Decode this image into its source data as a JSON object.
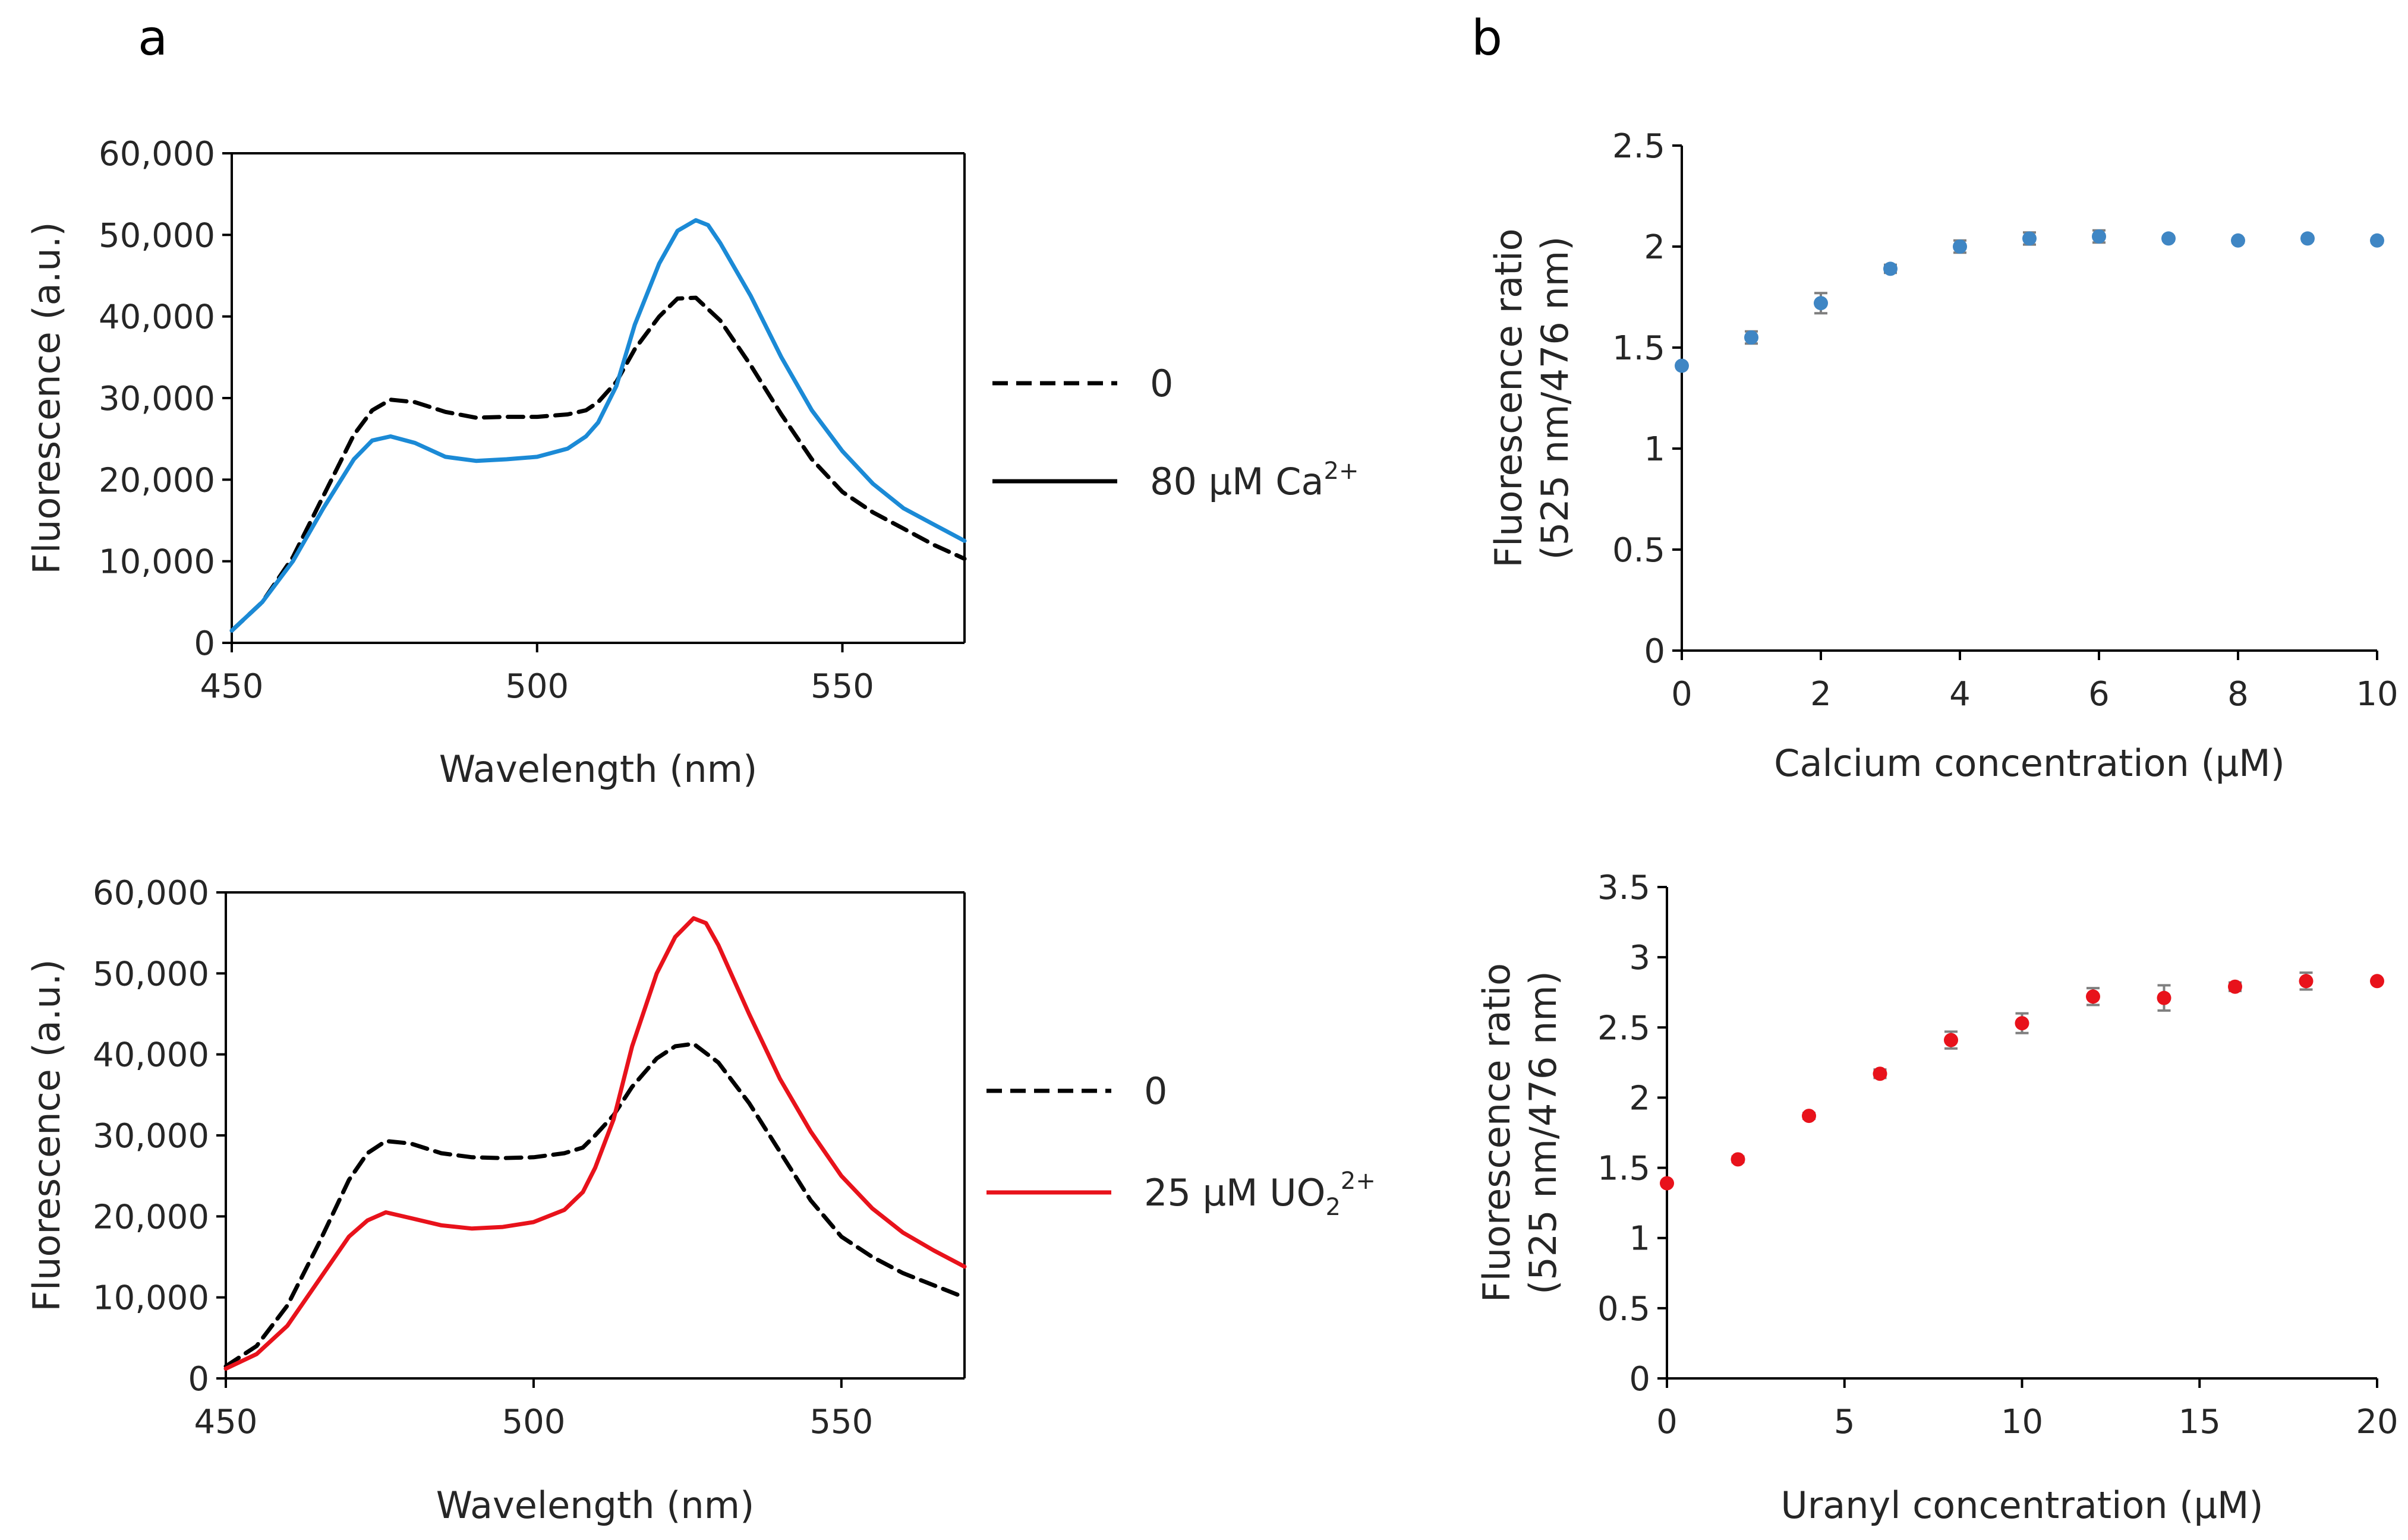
{
  "panel_letters": {
    "a": "a",
    "b": "b"
  },
  "legends": {
    "top_left": [
      {
        "label": "0",
        "style": "dashed"
      },
      {
        "label": "80 µM Ca",
        "superscript": "2+",
        "style": "solid"
      }
    ],
    "bottom_left": [
      {
        "label": "0",
        "style": "dashed"
      },
      {
        "label": "25 µM UO",
        "subscript": "2",
        "superscript": "2+",
        "style": "solid"
      }
    ]
  },
  "chart_data": [
    {
      "id": "a_top",
      "type": "line",
      "title": "",
      "xlabel": "Wavelength (nm)",
      "ylabel": "Fluorescence (a.u.)",
      "xlim": [
        450,
        570
      ],
      "ylim": [
        0,
        60000
      ],
      "xticks": [
        450,
        500,
        550
      ],
      "xtick_labels": [
        "450",
        "500",
        "550"
      ],
      "yticks": [
        0,
        10000,
        20000,
        30000,
        40000,
        50000,
        60000
      ],
      "ytick_labels": [
        "0",
        "10,000",
        "20,000",
        "30,000",
        "40,000",
        "50,000",
        "60,000"
      ],
      "grid": false,
      "legend_position": "right-outside",
      "series": [
        {
          "name": "0",
          "color": "#000000",
          "dash": "dashed",
          "x": [
            450,
            455,
            460,
            465,
            470,
            473,
            476,
            480,
            485,
            490,
            495,
            500,
            505,
            508,
            510,
            513,
            516,
            520,
            523,
            526,
            530,
            535,
            540,
            545,
            550,
            555,
            560,
            565,
            570
          ],
          "y": [
            1500,
            5000,
            10500,
            18000,
            25500,
            28500,
            29800,
            29500,
            28300,
            27600,
            27700,
            27700,
            28000,
            28500,
            29500,
            32000,
            36000,
            40000,
            42200,
            42300,
            39500,
            34000,
            28000,
            22500,
            18500,
            16000,
            14000,
            12000,
            10300
          ]
        },
        {
          "name": "80 µM Ca2+",
          "color": "#1b8ad6",
          "dash": "solid",
          "x": [
            450,
            455,
            460,
            465,
            470,
            473,
            476,
            480,
            485,
            490,
            495,
            500,
            505,
            508,
            510,
            513,
            516,
            520,
            523,
            526,
            528,
            530,
            535,
            540,
            545,
            550,
            555,
            560,
            565,
            570
          ],
          "y": [
            1500,
            5000,
            10000,
            16500,
            22500,
            24800,
            25300,
            24500,
            22800,
            22300,
            22500,
            22800,
            23800,
            25300,
            27000,
            31500,
            39000,
            46500,
            50500,
            51800,
            51200,
            49000,
            42500,
            35000,
            28500,
            23500,
            19500,
            16500,
            14500,
            12500
          ]
        }
      ]
    },
    {
      "id": "a_bottom",
      "type": "line",
      "title": "",
      "xlabel": "Wavelength (nm)",
      "ylabel": "Fluorescence (a.u.)",
      "xlim": [
        450,
        570
      ],
      "ylim": [
        0,
        60000
      ],
      "xticks": [
        450,
        500,
        550
      ],
      "xtick_labels": [
        "450",
        "500",
        "550"
      ],
      "yticks": [
        0,
        10000,
        20000,
        30000,
        40000,
        50000,
        60000
      ],
      "ytick_labels": [
        "0",
        "10,000",
        "20,000",
        "30,000",
        "40,000",
        "50,000",
        "60,000"
      ],
      "grid": false,
      "legend_position": "right-outside",
      "series": [
        {
          "name": "0",
          "color": "#000000",
          "dash": "dashed",
          "x": [
            450,
            455,
            460,
            465,
            470,
            473,
            476,
            480,
            485,
            490,
            495,
            500,
            505,
            508,
            510,
            513,
            516,
            520,
            523,
            526,
            530,
            535,
            540,
            545,
            550,
            555,
            560,
            565,
            570
          ],
          "y": [
            1500,
            4000,
            9000,
            16500,
            24500,
            27800,
            29300,
            29000,
            27800,
            27300,
            27200,
            27300,
            27800,
            28500,
            30000,
            32500,
            36000,
            39500,
            41000,
            41300,
            39000,
            34000,
            28000,
            22000,
            17500,
            15000,
            13000,
            11500,
            10000
          ]
        },
        {
          "name": "25 µM UO22+",
          "color": "#e8121b",
          "dash": "solid",
          "x": [
            450,
            455,
            460,
            465,
            470,
            473,
            476,
            480,
            485,
            490,
            495,
            500,
            505,
            508,
            510,
            513,
            516,
            520,
            523,
            526,
            528,
            530,
            535,
            540,
            545,
            550,
            555,
            560,
            565,
            570
          ],
          "y": [
            1200,
            3000,
            6500,
            12000,
            17500,
            19500,
            20500,
            19800,
            18900,
            18500,
            18700,
            19300,
            20800,
            23000,
            26000,
            32000,
            41000,
            50000,
            54500,
            56800,
            56200,
            53500,
            45000,
            37000,
            30500,
            25000,
            21000,
            18000,
            15800,
            13800
          ]
        }
      ]
    },
    {
      "id": "b_top",
      "type": "scatter",
      "title": "",
      "xlabel": "Calcium concentration (µM)",
      "ylabel_lines": [
        "Fluorescence  ratio",
        "(525 nm/476 nm)"
      ],
      "xlim": [
        0,
        10
      ],
      "ylim": [
        0,
        2.5
      ],
      "xticks": [
        0,
        2,
        4,
        6,
        8,
        10
      ],
      "xtick_labels": [
        "0",
        "2",
        "4",
        "6",
        "8",
        "10"
      ],
      "yticks": [
        0,
        0.5,
        1,
        1.5,
        2,
        2.5
      ],
      "ytick_labels": [
        "0",
        "0.5",
        "1",
        "1.5",
        "2",
        "2.5"
      ],
      "grid": false,
      "marker_color": "#3f86c4",
      "errorbar_color": "#7f7f7f",
      "x": [
        0,
        1,
        2,
        3,
        4,
        5,
        6,
        7,
        8,
        9,
        10
      ],
      "y": [
        1.41,
        1.55,
        1.72,
        1.89,
        2.0,
        2.04,
        2.05,
        2.04,
        2.03,
        2.04,
        2.03
      ],
      "error": [
        0.01,
        0.03,
        0.05,
        0.02,
        0.03,
        0.03,
        0.03,
        0.01,
        0.01,
        0.01,
        0.01
      ]
    },
    {
      "id": "b_bottom",
      "type": "scatter",
      "title": "",
      "xlabel": "Uranyl concentration (µM)",
      "ylabel_lines": [
        "Fluorescence  ratio",
        "(525 nm/476 nm)"
      ],
      "xlim": [
        0,
        20
      ],
      "ylim": [
        0,
        3.5
      ],
      "xticks": [
        0,
        5,
        10,
        15,
        20
      ],
      "xtick_labels": [
        "0",
        "5",
        "10",
        "15",
        "20"
      ],
      "yticks": [
        0,
        0.5,
        1,
        1.5,
        2,
        2.5,
        3,
        3.5
      ],
      "ytick_labels": [
        "0",
        "0.5",
        "1",
        "1.5",
        "2",
        "2.5",
        "3",
        "3.5"
      ],
      "grid": false,
      "marker_color": "#e8121b",
      "errorbar_color": "#7f7f7f",
      "x": [
        0,
        2,
        4,
        6,
        8,
        10,
        12,
        14,
        16,
        18,
        20
      ],
      "y": [
        1.39,
        1.56,
        1.87,
        2.17,
        2.41,
        2.53,
        2.72,
        2.71,
        2.79,
        2.83,
        2.83
      ],
      "error": [
        0.01,
        0.02,
        0.02,
        0.03,
        0.06,
        0.07,
        0.06,
        0.09,
        0.03,
        0.06,
        0.01
      ]
    }
  ]
}
